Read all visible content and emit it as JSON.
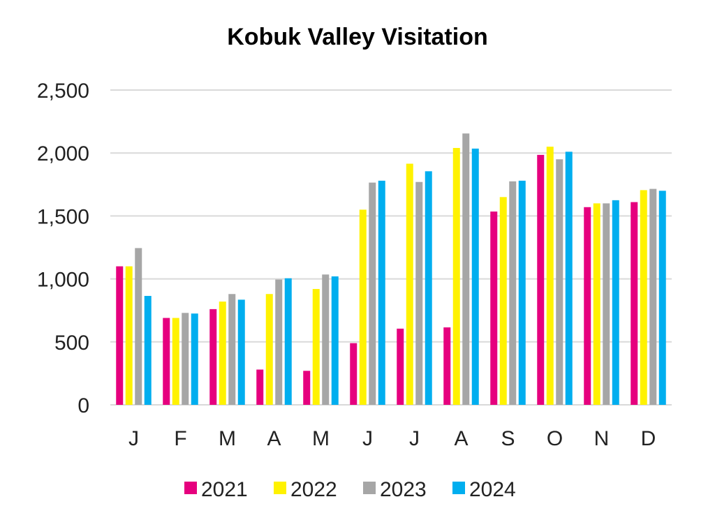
{
  "chart_data": {
    "type": "bar",
    "title": "Kobuk Valley Visitation",
    "xlabel": "",
    "ylabel": "",
    "categories": [
      "J",
      "F",
      "M",
      "A",
      "M",
      "J",
      "J",
      "A",
      "S",
      "O",
      "N",
      "D"
    ],
    "ylim": [
      0,
      2500
    ],
    "yticks": [
      0,
      500,
      1000,
      1500,
      2000,
      2500
    ],
    "ytick_labels": [
      "0",
      "500",
      "1,000",
      "1,500",
      "2,000",
      "2,500"
    ],
    "grid": true,
    "legend_position": "bottom",
    "series": [
      {
        "name": "2021",
        "color": "#e6007e",
        "values": [
          1100,
          690,
          760,
          280,
          270,
          490,
          605,
          615,
          1535,
          1985,
          1570,
          1610
        ]
      },
      {
        "name": "2022",
        "color": "#fff200",
        "values": [
          1100,
          690,
          820,
          880,
          920,
          1550,
          1915,
          2040,
          1650,
          2050,
          1600,
          1705
        ]
      },
      {
        "name": "2023",
        "color": "#a6a6a6",
        "values": [
          1245,
          730,
          880,
          995,
          1035,
          1765,
          1770,
          2155,
          1775,
          1950,
          1600,
          1715
        ]
      },
      {
        "name": "2024",
        "color": "#00aeef",
        "values": [
          865,
          725,
          835,
          1005,
          1020,
          1780,
          1855,
          2035,
          1780,
          2010,
          1625,
          1700
        ]
      }
    ]
  }
}
